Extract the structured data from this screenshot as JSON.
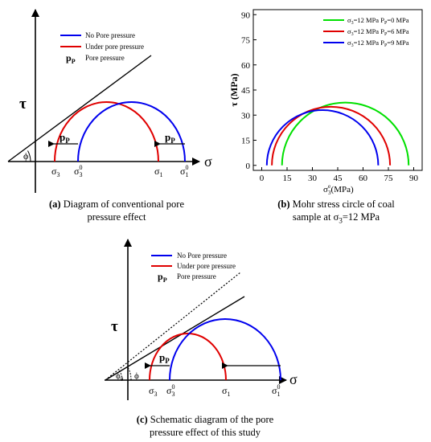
{
  "panel_a": {
    "axis_y": "τ",
    "axis_x": "σ",
    "angle": "ϕ",
    "legend": {
      "no_pore": "No Pore pressure",
      "under_pore": "Under pore pressure",
      "pp_symbol": "p",
      "pp_sub": "P",
      "pp_text": "Pore pressure"
    },
    "pp_symbol": "p",
    "pp_sub": "P",
    "labels": {
      "s3": "σ",
      "s3_sub": "3",
      "s03": "σ",
      "s03_sup": "0",
      "s03_sub": "3",
      "s1": "σ",
      "s1_sub": "1",
      "s01": "σ",
      "s01_sup": "0",
      "s01_sub": "1"
    },
    "caption_bold": "(a)",
    "caption_line1": " Diagram of conventional pore",
    "caption_line2": "pressure effect"
  },
  "panel_b": {
    "caption_bold": "(b)",
    "caption_line1": " Mohr stress circle of  coal",
    "caption_line2a": "sample at σ",
    "caption_line2_sub": "3",
    "caption_line2b": "=12 MPa",
    "chart_data": {
      "type": "line",
      "ylabel": "τ (MPa)",
      "xlabel_main": "σ",
      "xlabel_sub": "3",
      "xlabel_sup": "e",
      "xlabel_unit": "(MPa)",
      "xlim": [
        -5,
        95
      ],
      "ylim": [
        -3,
        93
      ],
      "x_ticks": [
        "0",
        "15",
        "30",
        "45",
        "60",
        "75",
        "90"
      ],
      "y_ticks": [
        "0",
        "15",
        "30",
        "45",
        "60",
        "75",
        "90"
      ],
      "legend_position": "top-right",
      "series": [
        {
          "name_s": "σ",
          "name_sub": "3",
          "name_rest": "=12 MPa  P",
          "name_p_sub": "P",
          "name_end": "=0 MPa",
          "color": "#00e000",
          "sigma3": 12,
          "sigma1": 87
        },
        {
          "name_s": "σ",
          "name_sub": "3",
          "name_rest": "=12 MPa  P",
          "name_p_sub": "P",
          "name_end": "=6 MPa",
          "color": "#e00000",
          "sigma3": 6,
          "sigma1": 76
        },
        {
          "name_s": "σ",
          "name_sub": "3",
          "name_rest": "=12 MPa  P",
          "name_p_sub": "P",
          "name_end": "=9 MPa",
          "color": "#0000ee",
          "sigma3": 3,
          "sigma1": 69
        }
      ]
    }
  },
  "panel_c": {
    "axis_y": "τ",
    "axis_x": "σ",
    "angle_0": "ϕ",
    "angle_0_sub": "0",
    "angle": "ϕ",
    "legend": {
      "no_pore": "No Pore pressure",
      "under_pore": "Under pore pressure",
      "pp_symbol": "p",
      "pp_sub": "P",
      "pp_text": "Pore pressure"
    },
    "pp_symbol": "p",
    "pp_sub": "P",
    "labels": {
      "s3": "σ",
      "s3_sub": "3",
      "s03": "σ",
      "s03_sup": "0",
      "s03_sub": "3",
      "s1": "σ",
      "s1_sub": "1",
      "s01": "σ",
      "s01_sup": "0",
      "s01_sub": "1"
    },
    "caption_bold": "(c)",
    "caption_line1": " Schematic diagram of the pore",
    "caption_line2": "pressure effect of this study"
  },
  "colors": {
    "blue": "#0000ee",
    "red": "#e00000",
    "green": "#00e000",
    "black": "#000000"
  }
}
